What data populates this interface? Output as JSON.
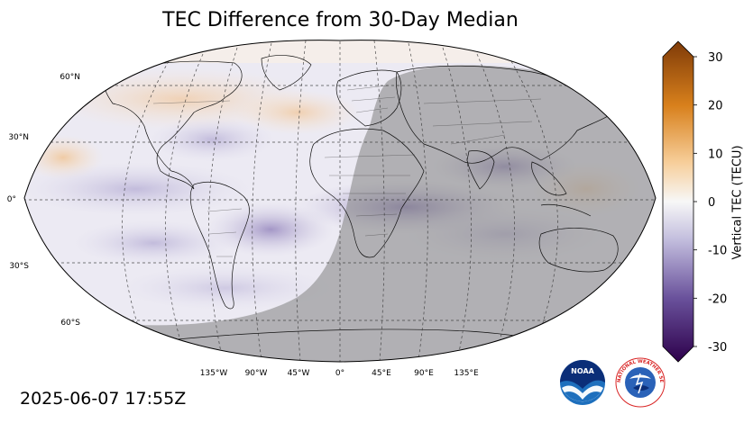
{
  "title": "TEC Difference from 30-Day Median",
  "timestamp": "2025-06-07 17:55Z",
  "colorbar": {
    "label": "Vertical TEC (TECU)",
    "range": [
      -30,
      30
    ],
    "ticks": [
      "30",
      "20",
      "10",
      "0",
      "-10",
      "-20",
      "-30"
    ]
  },
  "map": {
    "projection": "robinson",
    "latitude_labels": [
      "60°N",
      "30°N",
      "0°",
      "30°S",
      "60°S"
    ],
    "longitude_labels": [
      "135°W",
      "90°W",
      "45°W",
      "0°",
      "45°E",
      "90°E",
      "135°E"
    ],
    "night_shading": true,
    "colors": {
      "night": "#9a9a9a",
      "positive": "#e08a2c",
      "negative": "#5a3f92",
      "neutral": "#f2f2f4"
    }
  },
  "logos": {
    "noaa": "NOAA",
    "nws": "NATIONAL WEATHER SERVICE"
  }
}
